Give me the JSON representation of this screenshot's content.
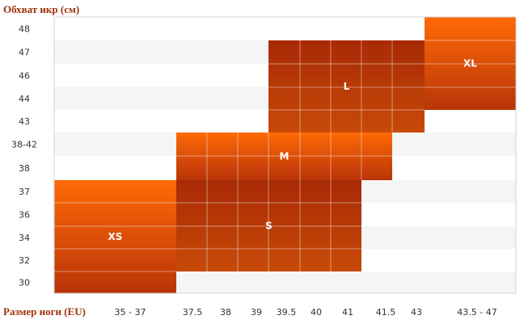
{
  "chart_data": {
    "type": "heatmap",
    "title": "",
    "ylabel": "Обхват икр (см)",
    "xlabel": "Размер ноги (EU)",
    "x_categories": [
      "35 - 37",
      "37.5",
      "38",
      "39",
      "39.5",
      "40",
      "41",
      "41.5",
      "43",
      "43.5 - 47"
    ],
    "y_categories": [
      "48",
      "47",
      "46",
      "44",
      "43",
      "38-42",
      "38",
      "37",
      "36",
      "34",
      "32",
      "30"
    ],
    "grid": true,
    "sizes": [
      {
        "name": "XS",
        "x_from": "35 - 37",
        "x_to": "35 - 37",
        "y_from": "37",
        "y_to": "30",
        "color_top": "#ff6a06",
        "color_bottom": "#b83408"
      },
      {
        "name": "S",
        "x_from": "37.5",
        "x_to": "41",
        "y_from": "37",
        "y_to": "32",
        "color_top": "#a82a05",
        "color_bottom": "#c84a08"
      },
      {
        "name": "M",
        "x_from": "37.5",
        "x_to": "41.5",
        "y_from": "38-42",
        "y_to": "38",
        "color_top": "#ff6a06",
        "color_bottom": "#b83408"
      },
      {
        "name": "L",
        "x_from": "39.5",
        "x_to": "43",
        "y_from": "47",
        "y_to": "43",
        "color_top": "#a82a05",
        "color_bottom": "#c84a08"
      },
      {
        "name": "XL",
        "x_from": "43.5 - 47",
        "x_to": "43.5 - 47",
        "y_from": "48",
        "y_to": "44",
        "color_top": "#ff6a06",
        "color_bottom": "#b83408"
      }
    ],
    "colors": {
      "band": "#f5f5f5",
      "grid": "#ffffff",
      "border": "#d2d2d2"
    }
  }
}
